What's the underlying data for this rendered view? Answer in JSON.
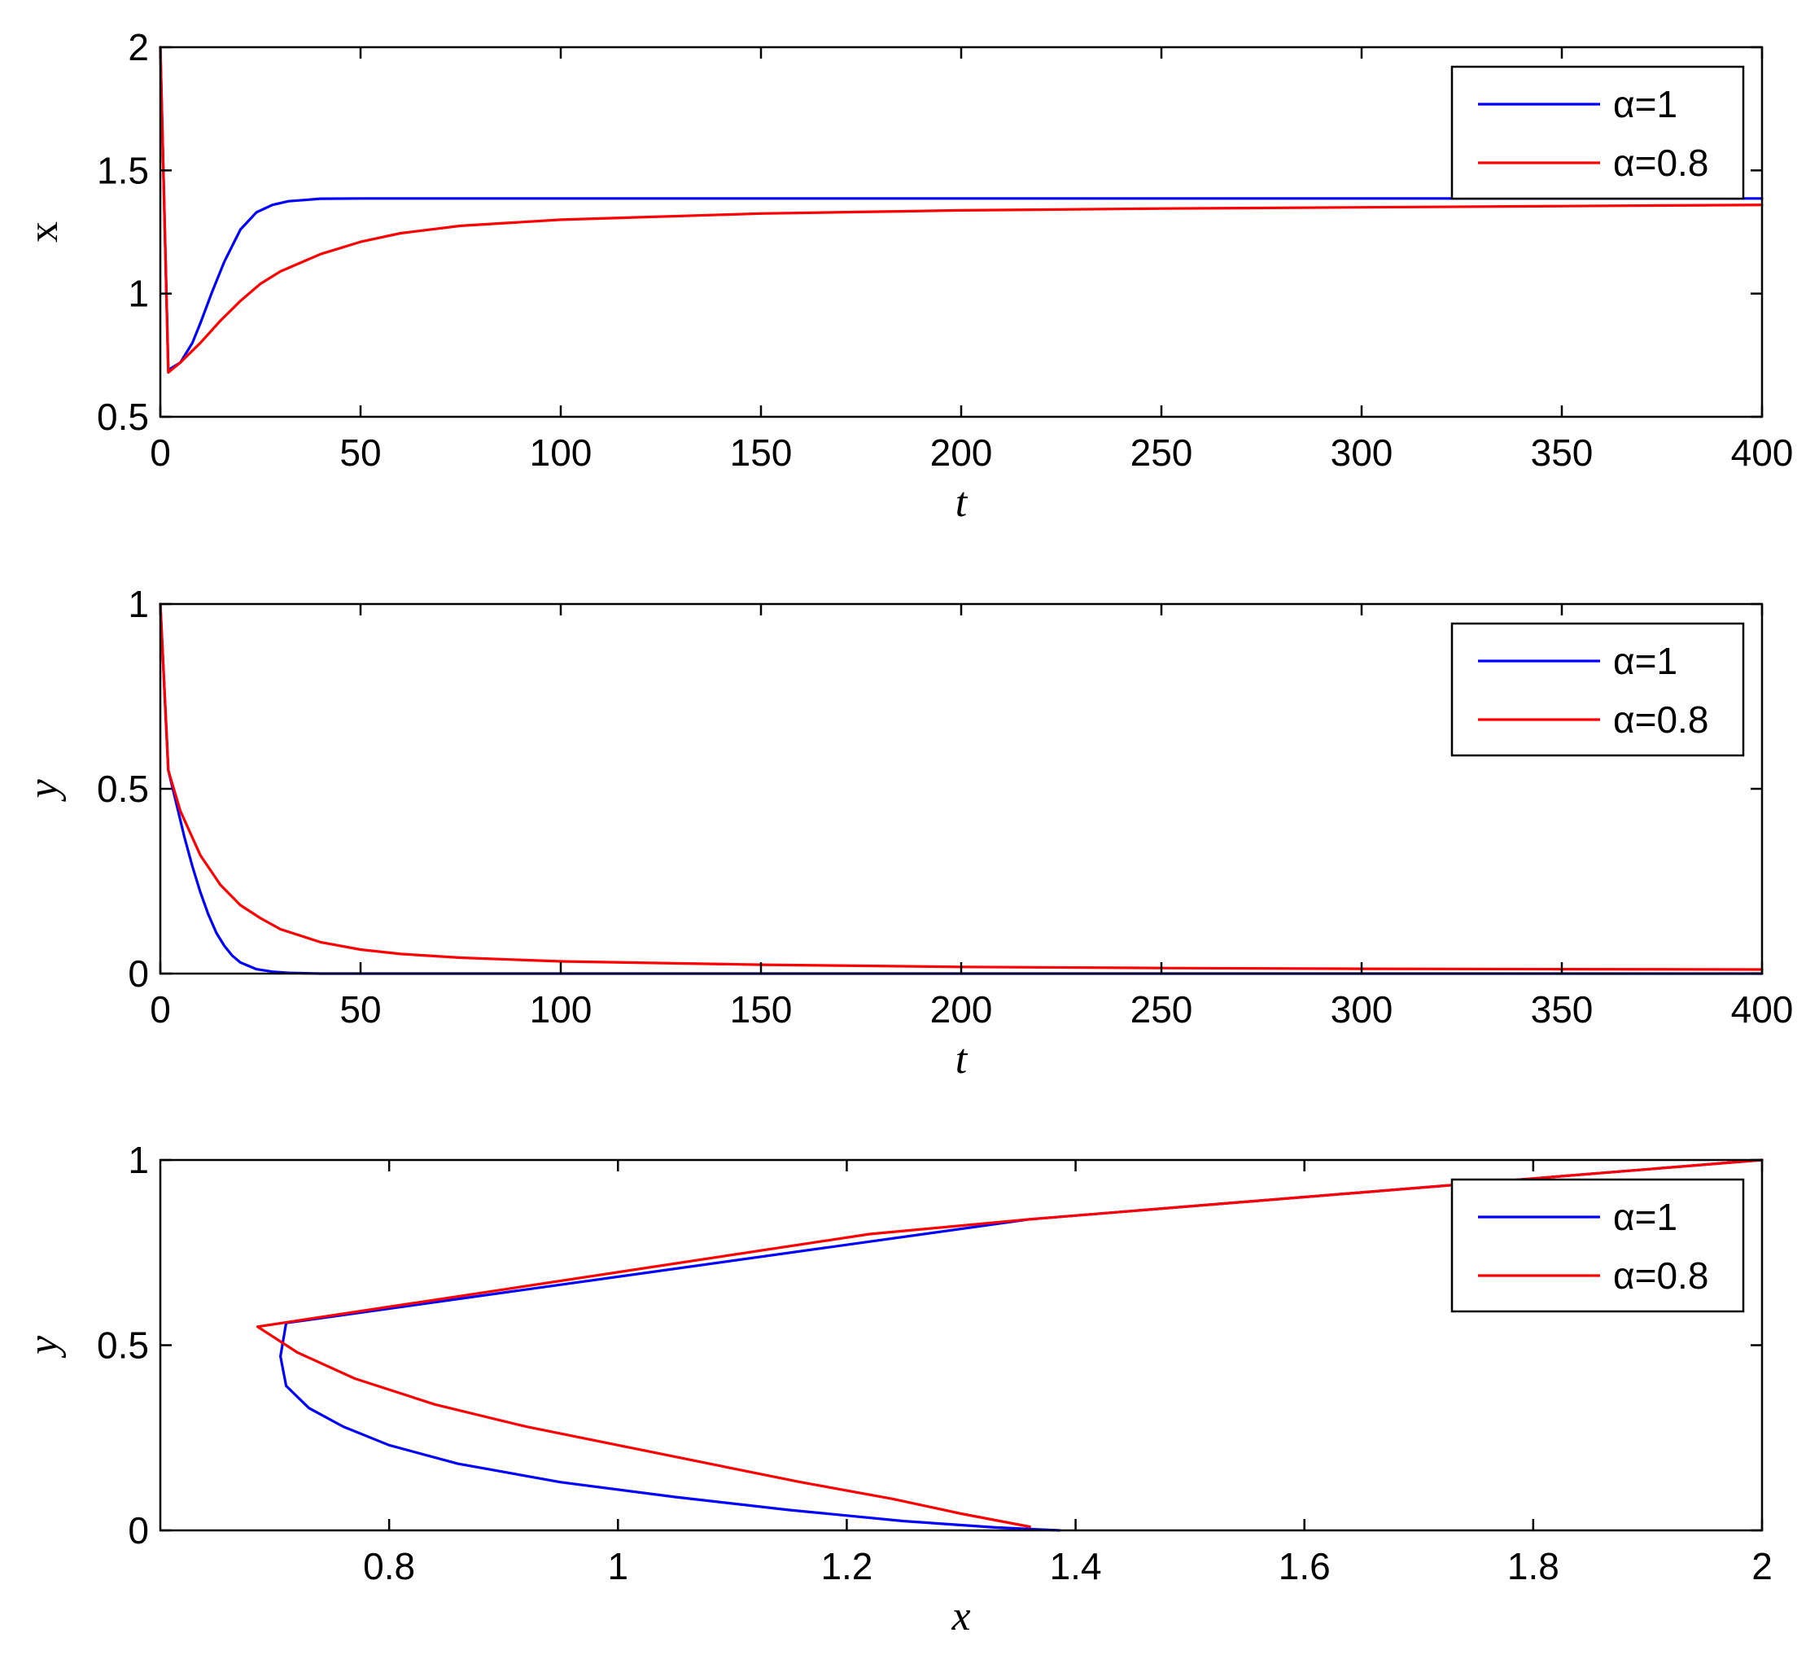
{
  "colors": {
    "blue": "#0000ff",
    "red": "#ff0000",
    "axis": "#000000"
  },
  "chart_data": [
    {
      "type": "line",
      "xlabel": "t",
      "ylabel": "x",
      "xlim": [
        0,
        400
      ],
      "ylim": [
        0.5,
        2
      ],
      "xticks": [
        "0",
        "50",
        "100",
        "150",
        "200",
        "250",
        "300",
        "350",
        "400"
      ],
      "yticks": [
        "0.5",
        "1",
        "1.5",
        "2"
      ],
      "legend_position": "top-right",
      "series": [
        {
          "name": "α=1",
          "color": "#0000ff",
          "points": [
            [
              0,
              2.0
            ],
            [
              2,
              0.69
            ],
            [
              5,
              0.72
            ],
            [
              8,
              0.8
            ],
            [
              10,
              0.88
            ],
            [
              13,
              1.01
            ],
            [
              16,
              1.13
            ],
            [
              20,
              1.26
            ],
            [
              24,
              1.33
            ],
            [
              28,
              1.36
            ],
            [
              32,
              1.375
            ],
            [
              36,
              1.38
            ],
            [
              40,
              1.385
            ],
            [
              50,
              1.386
            ],
            [
              100,
              1.386
            ],
            [
              200,
              1.386
            ],
            [
              300,
              1.386
            ],
            [
              400,
              1.386
            ]
          ]
        },
        {
          "name": "α=0.8",
          "color": "#ff0000",
          "points": [
            [
              0,
              2.0
            ],
            [
              2,
              0.68
            ],
            [
              5,
              0.72
            ],
            [
              10,
              0.8
            ],
            [
              15,
              0.89
            ],
            [
              20,
              0.97
            ],
            [
              25,
              1.04
            ],
            [
              30,
              1.09
            ],
            [
              40,
              1.16
            ],
            [
              50,
              1.21
            ],
            [
              60,
              1.245
            ],
            [
              75,
              1.275
            ],
            [
              100,
              1.3
            ],
            [
              150,
              1.325
            ],
            [
              200,
              1.338
            ],
            [
              250,
              1.345
            ],
            [
              300,
              1.35
            ],
            [
              350,
              1.355
            ],
            [
              400,
              1.36
            ]
          ]
        }
      ]
    },
    {
      "type": "line",
      "xlabel": "t",
      "ylabel": "y",
      "xlim": [
        0,
        400
      ],
      "ylim": [
        0,
        1
      ],
      "xticks": [
        "0",
        "50",
        "100",
        "150",
        "200",
        "250",
        "300",
        "350",
        "400"
      ],
      "yticks": [
        "0",
        "0.5",
        "1"
      ],
      "legend_position": "top-right",
      "series": [
        {
          "name": "α=1",
          "color": "#0000ff",
          "points": [
            [
              0,
              1.0
            ],
            [
              2,
              0.55
            ],
            [
              4,
              0.46
            ],
            [
              6,
              0.37
            ],
            [
              8,
              0.29
            ],
            [
              10,
              0.22
            ],
            [
              12,
              0.16
            ],
            [
              14,
              0.11
            ],
            [
              16,
              0.075
            ],
            [
              18,
              0.048
            ],
            [
              20,
              0.03
            ],
            [
              24,
              0.012
            ],
            [
              28,
              0.005
            ],
            [
              32,
              0.002
            ],
            [
              40,
              0.0
            ],
            [
              100,
              0.0
            ],
            [
              400,
              0.0
            ]
          ]
        },
        {
          "name": "α=0.8",
          "color": "#ff0000",
          "points": [
            [
              0,
              1.0
            ],
            [
              2,
              0.55
            ],
            [
              5,
              0.44
            ],
            [
              10,
              0.32
            ],
            [
              15,
              0.24
            ],
            [
              20,
              0.185
            ],
            [
              25,
              0.15
            ],
            [
              30,
              0.12
            ],
            [
              40,
              0.085
            ],
            [
              50,
              0.065
            ],
            [
              60,
              0.053
            ],
            [
              75,
              0.043
            ],
            [
              100,
              0.033
            ],
            [
              150,
              0.024
            ],
            [
              200,
              0.018
            ],
            [
              250,
              0.015
            ],
            [
              300,
              0.013
            ],
            [
              350,
              0.012
            ],
            [
              400,
              0.011
            ]
          ]
        }
      ]
    },
    {
      "type": "line",
      "xlabel": "x",
      "ylabel": "y",
      "xlim": [
        0.6,
        2
      ],
      "ylim": [
        0,
        1
      ],
      "xticks": [
        "0.8",
        "1",
        "1.2",
        "1.4",
        "1.6",
        "1.8",
        "2"
      ],
      "yticks": [
        "0",
        "0.5",
        "1"
      ],
      "legend_position": "top-right",
      "series": [
        {
          "name": "α=1",
          "color": "#0000ff",
          "points": [
            [
              2.0,
              1.0
            ],
            [
              1.36,
              0.84
            ],
            [
              0.71,
              0.56
            ],
            [
              0.705,
              0.47
            ],
            [
              0.71,
              0.39
            ],
            [
              0.73,
              0.33
            ],
            [
              0.76,
              0.28
            ],
            [
              0.8,
              0.23
            ],
            [
              0.86,
              0.18
            ],
            [
              0.95,
              0.13
            ],
            [
              1.05,
              0.09
            ],
            [
              1.15,
              0.055
            ],
            [
              1.25,
              0.025
            ],
            [
              1.33,
              0.008
            ],
            [
              1.386,
              0.0
            ]
          ]
        },
        {
          "name": "α=0.8",
          "color": "#ff0000",
          "points": [
            [
              2.0,
              1.0
            ],
            [
              1.36,
              0.84
            ],
            [
              1.22,
              0.8
            ],
            [
              0.685,
              0.55
            ],
            [
              0.72,
              0.48
            ],
            [
              0.77,
              0.41
            ],
            [
              0.84,
              0.34
            ],
            [
              0.92,
              0.28
            ],
            [
              1.0,
              0.23
            ],
            [
              1.08,
              0.18
            ],
            [
              1.16,
              0.13
            ],
            [
              1.24,
              0.085
            ],
            [
              1.3,
              0.045
            ],
            [
              1.36,
              0.01
            ]
          ]
        }
      ]
    }
  ]
}
